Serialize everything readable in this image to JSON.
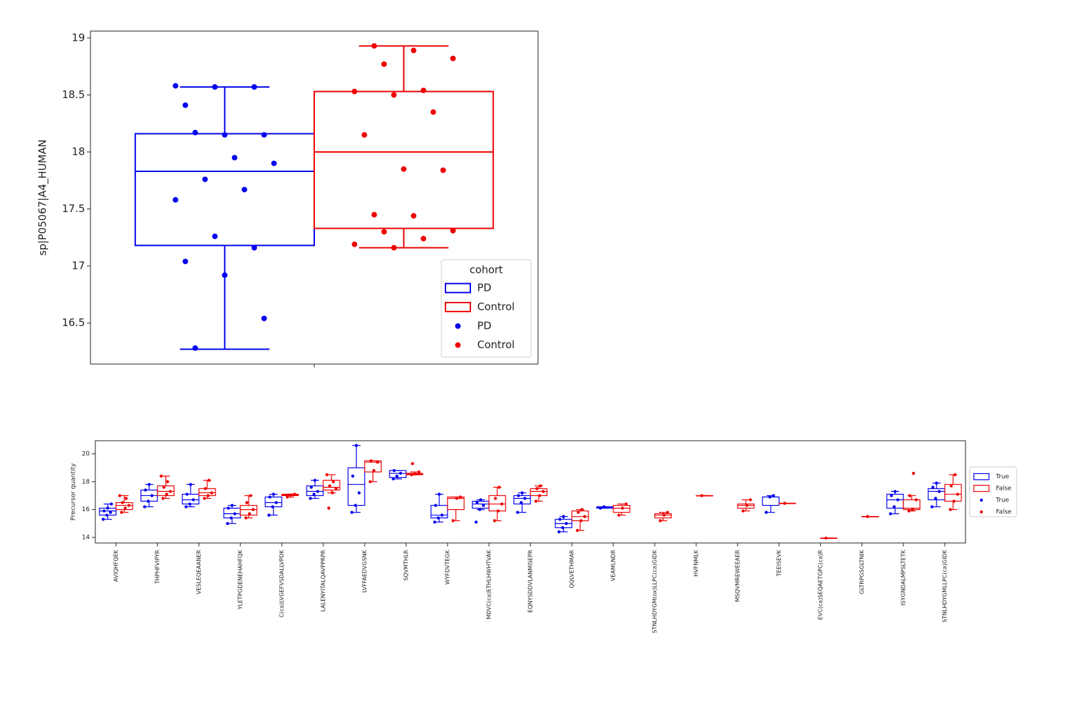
{
  "chart_data": [
    {
      "type": "box",
      "ylabel": "sp|P05067|A4_HUMAN",
      "categories": [
        null
      ],
      "ylim": [
        16.14,
        19.06
      ],
      "yticks": [
        16.5,
        17.0,
        17.5,
        18.0,
        18.5,
        19.0
      ],
      "legend_title": "cohort",
      "legend": "lower right",
      "series": [
        {
          "name": "PD",
          "color": "#0000ee",
          "boxes": [
            [
              16.27,
              17.18,
              17.83,
              18.16,
              18.57
            ]
          ],
          "points": [
            [
              18.58,
              18.57,
              18.57,
              18.41,
              18.15,
              18.15,
              18.17,
              17.95,
              17.9,
              17.76,
              17.67,
              17.58,
              17.26,
              17.16,
              17.04,
              16.92,
              16.54,
              16.28
            ]
          ]
        },
        {
          "name": "Control",
          "color": "#ee0000",
          "boxes": [
            [
              17.16,
              17.33,
              18.0,
              18.53,
              18.93
            ]
          ],
          "points": [
            [
              18.93,
              18.89,
              18.82,
              18.77,
              18.54,
              18.53,
              18.5,
              18.35,
              18.15,
              17.85,
              17.84,
              17.45,
              17.44,
              17.31,
              17.3,
              17.24,
              17.19,
              17.16
            ]
          ]
        }
      ]
    },
    {
      "type": "box",
      "ylabel": "Precursor quantity",
      "categories": [
        "AVIQHFQEK",
        "THPHFVIPYR",
        "VESLEQEAANER",
        "YLETPGDENEHAHFQK",
        "C(ca)LVGEFVSDALLVPDK",
        "LALENYITALQAVPPRPR",
        "LVFFAEDVGSNK",
        "SQVMTHLR",
        "WYFDVTEGK",
        "MDVC(ca)ETHLHWHTVAK",
        "EQNYSDDVLANMISEPR",
        "QQLVETHMAR",
        "VEAMLNDR",
        "STNLHDYGM(ox)LLPC(ca)GIDK",
        "HVFNMLK",
        "MSQVMREWEEAER",
        "TEEISEVK",
        "EVC(ca)SEQAETGPC(ca)R",
        "GLTRPGSGLTNIK",
        "ISYGNDALMPSLTETK",
        "STNLHDYGMLLPC(ca)GIDK"
      ],
      "ylim": [
        13.6,
        20.94
      ],
      "yticks": [
        14,
        16,
        18,
        20
      ],
      "legend": "outside right",
      "series": [
        {
          "name": "True",
          "color": "#0000ee",
          "boxes": [
            [
              15.3,
              15.6,
              15.9,
              16.1,
              16.4
            ],
            [
              16.2,
              16.6,
              17.0,
              17.4,
              17.8
            ],
            [
              16.2,
              16.4,
              16.7,
              17.1,
              17.8
            ],
            [
              15.0,
              15.4,
              15.7,
              16.1,
              16.3
            ],
            [
              15.6,
              16.2,
              16.5,
              16.9,
              17.1
            ],
            [
              16.8,
              17.0,
              17.3,
              17.7,
              18.1
            ],
            [
              15.8,
              16.3,
              17.8,
              19.0,
              20.6
            ],
            [
              18.2,
              18.3,
              18.6,
              18.8,
              18.8
            ],
            [
              15.1,
              15.4,
              15.6,
              16.3,
              17.1
            ],
            [
              16.0,
              16.1,
              16.4,
              16.6,
              16.7
            ],
            [
              15.8,
              16.4,
              16.8,
              17.0,
              17.2
            ],
            [
              14.4,
              14.7,
              15.0,
              15.3,
              15.5
            ],
            [
              16.1,
              16.1,
              16.15,
              16.2,
              16.2
            ],
            null,
            null,
            null,
            [
              15.8,
              16.3,
              16.9,
              16.9,
              17.0
            ],
            null,
            null,
            [
              15.7,
              16.1,
              16.7,
              17.1,
              17.3
            ],
            [
              16.2,
              16.7,
              17.3,
              17.5,
              17.9
            ]
          ],
          "points": [
            [
              15.3,
              15.6,
              15.8,
              15.9,
              16.1,
              16.4
            ],
            [
              16.2,
              16.6,
              17.0,
              17.4,
              17.8
            ],
            [
              16.2,
              16.4,
              16.7,
              17.1,
              17.8
            ],
            [
              15.0,
              15.4,
              15.7,
              16.1,
              16.3
            ],
            [
              15.6,
              16.2,
              16.5,
              16.9,
              17.1
            ],
            [
              16.8,
              17.1,
              17.3,
              17.6,
              18.1
            ],
            [
              15.8,
              16.3,
              17.2,
              18.4,
              20.6
            ],
            [
              18.2,
              18.4,
              18.6,
              18.8
            ],
            [
              15.1,
              15.4,
              15.6,
              16.3,
              17.1
            ],
            [
              15.1,
              16.0,
              16.3,
              16.5,
              16.7
            ],
            [
              15.8,
              16.5,
              16.8,
              17.0,
              17.2
            ],
            [
              14.4,
              14.7,
              15.0,
              15.3,
              15.5
            ],
            [
              16.1,
              16.2
            ],
            [],
            [],
            [],
            [
              15.8,
              16.9,
              17.0
            ],
            [],
            [],
            [
              15.7,
              16.2,
              16.7,
              17.0,
              17.3
            ],
            [
              16.2,
              16.8,
              17.3,
              17.6,
              17.9
            ]
          ]
        },
        {
          "name": "False",
          "color": "#ee0000",
          "boxes": [
            [
              15.8,
              16.0,
              16.3,
              16.5,
              17.0
            ],
            [
              16.8,
              17.0,
              17.3,
              17.7,
              18.4
            ],
            [
              16.8,
              17.0,
              17.2,
              17.5,
              18.1
            ],
            [
              15.4,
              15.6,
              16.0,
              16.3,
              17.0
            ],
            [
              16.9,
              17.0,
              17.05,
              17.1,
              17.1
            ],
            [
              17.2,
              17.4,
              17.6,
              18.1,
              18.5
            ],
            [
              18.0,
              18.7,
              19.4,
              19.5,
              19.5
            ],
            [
              18.5,
              18.5,
              18.55,
              18.6,
              18.7
            ],
            [
              15.2,
              16.0,
              16.8,
              16.9,
              16.9
            ],
            [
              15.2,
              15.9,
              16.4,
              17.0,
              17.6
            ],
            [
              16.6,
              17.0,
              17.3,
              17.5,
              17.7
            ],
            [
              14.5,
              15.2,
              15.5,
              15.9,
              16.0
            ],
            [
              15.6,
              15.8,
              16.1,
              16.3,
              16.4
            ],
            [
              15.2,
              15.4,
              15.6,
              15.7,
              15.8
            ],
            [
              17.0,
              17.0,
              17.0,
              17.0,
              17.0
            ],
            [
              15.9,
              16.1,
              16.3,
              16.4,
              16.7
            ],
            [
              16.45,
              16.45,
              16.45,
              16.45,
              16.45
            ],
            [
              13.95,
              13.95,
              13.95,
              13.95,
              13.95
            ],
            [
              15.5,
              15.5,
              15.5,
              15.5,
              15.5
            ],
            [
              15.9,
              16.0,
              16.1,
              16.7,
              17.0
            ],
            [
              16.0,
              16.6,
              17.1,
              17.8,
              18.5
            ]
          ],
          "points": [
            [
              15.8,
              16.1,
              16.3,
              16.5,
              16.8,
              17.0
            ],
            [
              16.8,
              17.1,
              17.3,
              17.6,
              18.0,
              18.4
            ],
            [
              16.8,
              17.0,
              17.2,
              17.5,
              18.1
            ],
            [
              15.4,
              15.7,
              16.0,
              16.5,
              17.0
            ],
            [
              16.9,
              17.05,
              17.1
            ],
            [
              16.1,
              17.2,
              17.5,
              17.7,
              18.0,
              18.5
            ],
            [
              18.0,
              18.8,
              19.4,
              19.5
            ],
            [
              18.5,
              18.55,
              18.7,
              19.3
            ],
            [
              15.2,
              16.8,
              16.9
            ],
            [
              15.2,
              15.9,
              16.4,
              16.8,
              17.6
            ],
            [
              16.6,
              17.0,
              17.3,
              17.5,
              17.7
            ],
            [
              14.5,
              15.2,
              15.5,
              15.8,
              16.0
            ],
            [
              15.6,
              16.1,
              16.4
            ],
            [
              15.2,
              15.6,
              15.8
            ],
            [
              17.0
            ],
            [
              15.9,
              16.3,
              16.7
            ],
            [
              16.45
            ],
            [
              13.95
            ],
            [
              15.5
            ],
            [
              15.9,
              16.0,
              16.7,
              17.0,
              18.6
            ],
            [
              16.0,
              16.6,
              17.1,
              17.7,
              18.5
            ]
          ]
        }
      ]
    }
  ]
}
